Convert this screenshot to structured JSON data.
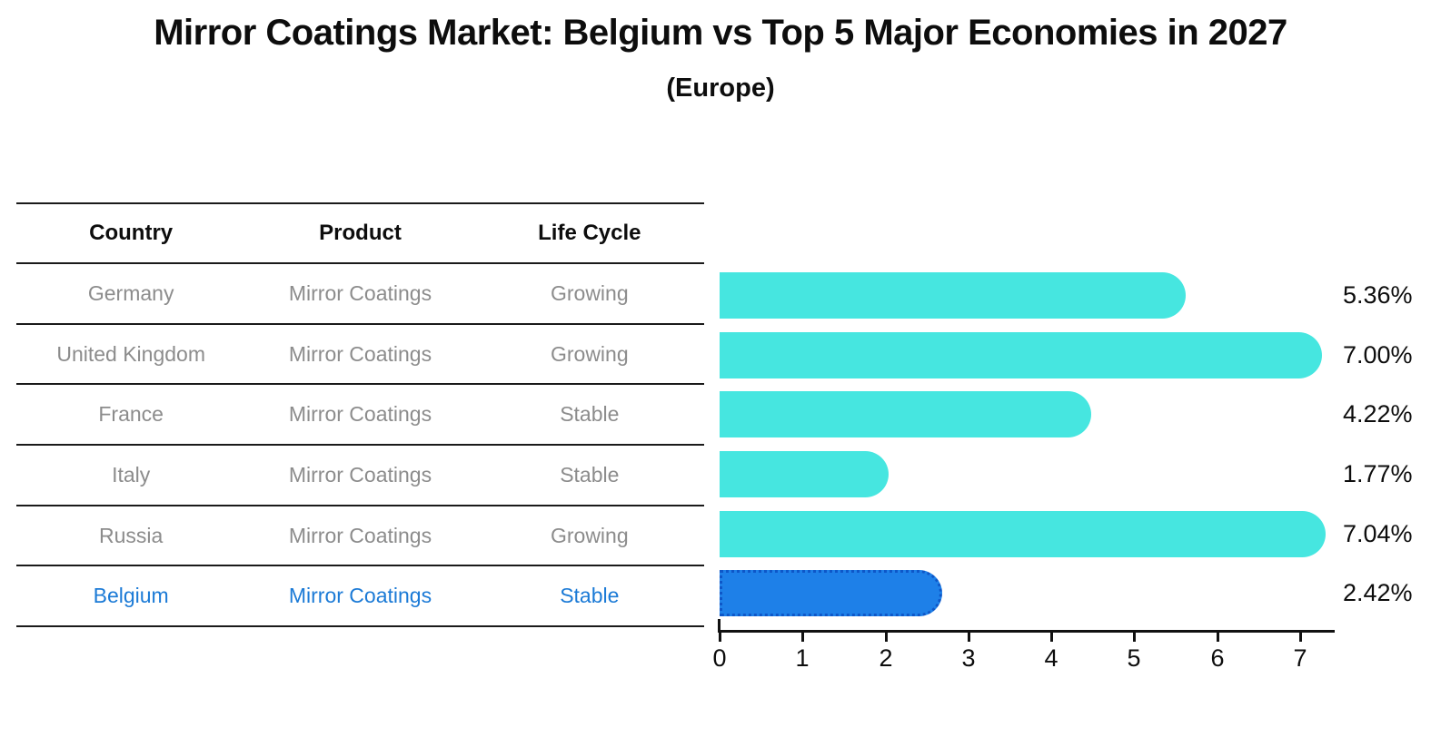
{
  "title": "Mirror Coatings Market: Belgium vs Top 5 Major Economies in 2027",
  "subtitle": "(Europe)",
  "table": {
    "headers": [
      "Country",
      "Product",
      "Life Cycle"
    ],
    "rows": [
      {
        "country": "Germany",
        "product": "Mirror Coatings",
        "life_cycle": "Growing"
      },
      {
        "country": "United Kingdom",
        "product": "Mirror Coatings",
        "life_cycle": "Growing"
      },
      {
        "country": "France",
        "product": "Mirror Coatings",
        "life_cycle": "Stable"
      },
      {
        "country": "Italy",
        "product": "Mirror Coatings",
        "life_cycle": "Stable"
      },
      {
        "country": "Russia",
        "product": "Mirror Coatings",
        "life_cycle": "Growing"
      },
      {
        "country": "Belgium",
        "product": "Mirror Coatings",
        "life_cycle": "Stable"
      }
    ],
    "highlight_row_index": 5
  },
  "chart_data": {
    "type": "bar",
    "orientation": "horizontal",
    "title": "Mirror Coatings Market: Belgium vs Top 5 Major Economies in 2027 (Europe)",
    "categories": [
      "Germany",
      "United Kingdom",
      "France",
      "Italy",
      "Russia",
      "Belgium"
    ],
    "values": [
      5.36,
      7.0,
      4.22,
      1.77,
      7.04,
      2.42
    ],
    "value_labels": [
      "5.36%",
      "7.00%",
      "4.22%",
      "1.77%",
      "7.04%",
      "2.42%"
    ],
    "x_ticks": [
      "0",
      "1",
      "2",
      "3",
      "4",
      "5",
      "6",
      "7"
    ],
    "xlim": [
      0,
      7.4
    ],
    "grid": false,
    "legend": false,
    "bar_color": "#46E6E0",
    "highlight_index": 5,
    "highlight_color": "#1E80E8",
    "highlight_border_color": "#0E57C8",
    "highlight_border_style": "dotted"
  },
  "colors": {
    "row_text": "#8c8c8c",
    "header_text": "#0d0d0d",
    "highlight_text": "#1B7AD6",
    "axis": "#111111",
    "background": "#ffffff"
  }
}
